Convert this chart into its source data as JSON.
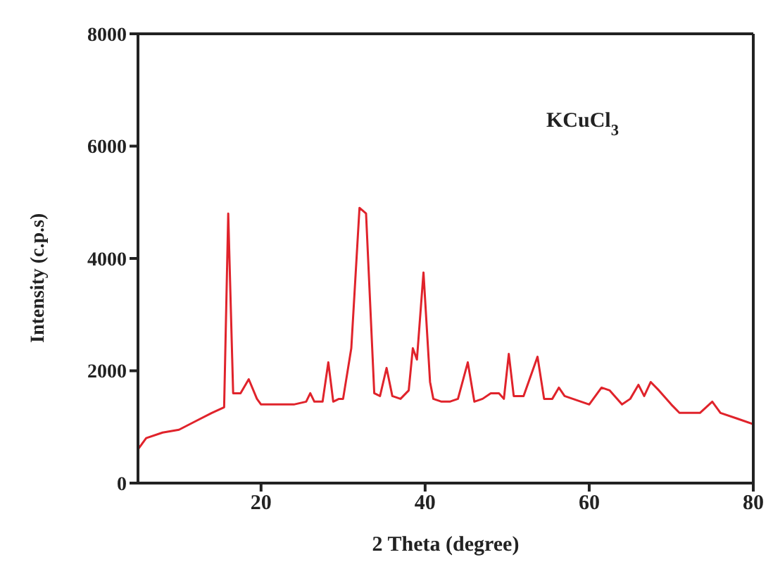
{
  "chart_data": {
    "type": "line",
    "xlabel": "2 Theta (degree)",
    "ylabel": "Intensity (c.p.s)",
    "annotations": [
      "KCuCl$_{3}$"
    ],
    "xlim": [
      5,
      80
    ],
    "xticks": [
      20,
      40,
      60,
      80
    ],
    "ylim": [
      0,
      8000
    ],
    "yticks": [
      0,
      2000,
      4000,
      6000,
      8000
    ],
    "grid": false,
    "legend": false,
    "marker": "none",
    "line_style": "solid",
    "x": [
      5,
      6,
      8,
      10,
      12,
      14,
      15.5,
      16,
      16.6,
      17.5,
      18.5,
      19.5,
      20,
      22,
      24,
      25.5,
      26,
      26.5,
      27.5,
      28.2,
      28.8,
      29.5,
      30,
      31,
      32,
      32.8,
      33.8,
      34.5,
      35.3,
      36,
      37,
      38,
      38.5,
      39,
      39.8,
      40.6,
      41,
      42,
      43,
      44,
      45.2,
      46,
      47,
      48,
      49,
      49.6,
      50.2,
      50.8,
      52,
      53.7,
      54.5,
      55.5,
      56.3,
      57,
      58,
      59,
      60,
      61.5,
      62.5,
      64,
      65,
      66,
      66.7,
      67.5,
      68.5,
      70,
      71,
      72,
      73.5,
      75,
      76,
      78,
      80
    ],
    "series": [
      {
        "color": "#e0232b",
        "values": [
          600,
          800,
          900,
          950,
          1100,
          1250,
          1350,
          4800,
          1600,
          1600,
          1850,
          1500,
          1400,
          1400,
          1400,
          1450,
          1600,
          1450,
          1450,
          2150,
          1450,
          1500,
          1500,
          2400,
          4900,
          4800,
          1600,
          1550,
          2050,
          1550,
          1500,
          1650,
          2400,
          2200,
          3750,
          1800,
          1500,
          1450,
          1450,
          1500,
          2150,
          1450,
          1500,
          1600,
          1600,
          1500,
          2300,
          1550,
          1550,
          2250,
          1500,
          1500,
          1700,
          1550,
          1500,
          1450,
          1400,
          1700,
          1650,
          1400,
          1500,
          1750,
          1550,
          1800,
          1650,
          1400,
          1250,
          1250,
          1250,
          1450,
          1250,
          1150,
          1050
        ]
      }
    ]
  }
}
